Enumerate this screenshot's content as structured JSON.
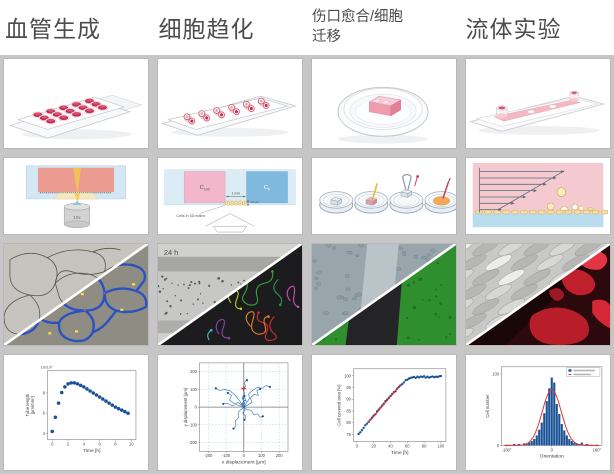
{
  "page": {
    "gutter_color": "#c6c6c6",
    "accent_red": "#c22e52",
    "accent_blue": "#1a5296"
  },
  "headers": [
    {
      "label": "血管生成"
    },
    {
      "label": "细胞趋化"
    },
    {
      "label": "伤口愈合/细胞迁移"
    },
    {
      "label": "流体实验"
    }
  ],
  "labels": {
    "objective": "10x",
    "c_high_base": "C",
    "c_high_sub": "100",
    "c_low_base": "C",
    "c_low_sub": "0",
    "channel_width": "1 mm",
    "channel_height": "70 µm",
    "cells_matrix": "Cells in 3D matrix",
    "time_label": "24 h"
  },
  "chart_data": [
    {
      "type": "scatter",
      "xlabel": "Time [h]",
      "ylabel_lines": [
        "Tube length",
        "[µm/mm²]"
      ],
      "exponent_label": "10x10³",
      "xlim": [
        -0.6,
        10.6
      ],
      "ylim": [
        3.4,
        10.2
      ],
      "xticks": [
        0,
        2,
        4,
        6,
        8,
        10
      ],
      "yticks": [
        4,
        6,
        8
      ],
      "marker_size": 1.8,
      "marker_color": "#1a5296",
      "x": [
        0,
        0.4,
        0.8,
        1.2,
        1.6,
        2,
        2.4,
        2.8,
        3.2,
        3.6,
        4,
        4.4,
        4.8,
        5.2,
        5.6,
        6,
        6.4,
        6.8,
        7.2,
        7.6,
        8,
        8.4,
        8.8,
        9.2,
        9.6
      ],
      "y": [
        4.2,
        5.6,
        7.0,
        8.05,
        8.6,
        8.9,
        9.0,
        9.0,
        8.9,
        8.75,
        8.6,
        8.4,
        8.2,
        8.0,
        7.8,
        7.6,
        7.4,
        7.2,
        7.0,
        6.8,
        6.6,
        6.45,
        6.3,
        6.15,
        6.0
      ]
    },
    {
      "type": "trajectories",
      "xlabel": "x displacement [µm]",
      "ylabel": "y displacement [µm]",
      "xlim": [
        -250,
        250
      ],
      "ylim": [
        -250,
        250
      ],
      "xticks": [
        -200,
        -100,
        0,
        100,
        200
      ],
      "yticks": [
        -200,
        -100,
        0,
        100,
        200
      ],
      "grid": "dashed",
      "line_color": "#2b6cb0",
      "dot_color": "#17497e",
      "center_marker": {
        "x": 0,
        "y": 105,
        "color": "#e03131"
      },
      "trajectories": [
        [
          [
            0,
            0
          ],
          [
            -12,
            18
          ],
          [
            -28,
            42
          ],
          [
            -50,
            68
          ],
          [
            -78,
            92
          ],
          [
            -108,
            99
          ],
          [
            -138,
            94
          ],
          [
            -158,
            106
          ]
        ],
        [
          [
            0,
            0
          ],
          [
            14,
            22
          ],
          [
            32,
            48
          ],
          [
            28,
            76
          ],
          [
            52,
            96
          ],
          [
            78,
            112
          ],
          [
            102,
            106
          ],
          [
            128,
            122
          ],
          [
            148,
            114
          ]
        ],
        [
          [
            0,
            0
          ],
          [
            -14,
            -12
          ],
          [
            -32,
            -30
          ],
          [
            -28,
            -58
          ],
          [
            -48,
            -78
          ],
          [
            -44,
            -104
          ],
          [
            -58,
            -122
          ]
        ],
        [
          [
            0,
            0
          ],
          [
            18,
            -14
          ],
          [
            42,
            -18
          ],
          [
            58,
            -44
          ],
          [
            78,
            -38
          ],
          [
            94,
            -58
          ],
          [
            108,
            -52
          ]
        ],
        [
          [
            0,
            0
          ],
          [
            4,
            28
          ],
          [
            -10,
            52
          ],
          [
            6,
            78
          ],
          [
            -4,
            98
          ],
          [
            10,
            118
          ],
          [
            2,
            138
          ],
          [
            18,
            152
          ]
        ],
        [
          [
            0,
            0
          ],
          [
            22,
            12
          ],
          [
            46,
            26
          ],
          [
            38,
            52
          ],
          [
            58,
            72
          ],
          [
            82,
            66
          ],
          [
            74,
            92
          ],
          [
            92,
            102
          ]
        ],
        [
          [
            0,
            0
          ],
          [
            10,
            6
          ],
          [
            -6,
            14
          ],
          [
            8,
            24
          ],
          [
            -12,
            18
          ],
          [
            2,
            38
          ],
          [
            14,
            34
          ],
          [
            6,
            52
          ],
          [
            -8,
            44
          ],
          [
            4,
            62
          ]
        ],
        [
          [
            0,
            0
          ],
          [
            -18,
            6
          ],
          [
            -42,
            14
          ],
          [
            -68,
            8
          ],
          [
            -92,
            22
          ],
          [
            -116,
            18
          ]
        ],
        [
          [
            0,
            0
          ],
          [
            8,
            -18
          ],
          [
            -6,
            -34
          ],
          [
            12,
            -52
          ],
          [
            4,
            -72
          ]
        ],
        [
          [
            0,
            0
          ],
          [
            -30,
            25
          ],
          [
            -55,
            20
          ],
          [
            -80,
            40
          ],
          [
            -70,
            65
          ],
          [
            -90,
            80
          ]
        ]
      ]
    },
    {
      "type": "scatter",
      "xlabel": "Time [h]",
      "ylabel": "Cell covered area [%]",
      "xlim": [
        -4,
        106
      ],
      "ylim": [
        72,
        103
      ],
      "xticks": [
        0,
        20,
        40,
        60,
        80,
        100
      ],
      "yticks": [
        75,
        80,
        85,
        90,
        95,
        100
      ],
      "marker_size": 1.2,
      "marker_color": "#1a5296",
      "fit_line": {
        "x1": 14,
        "y1": 80.2,
        "x2": 52,
        "y2": 96.3,
        "color": "#d62828"
      },
      "x": [
        2,
        4,
        6,
        8,
        10,
        12,
        14,
        16,
        18,
        20,
        22,
        24,
        26,
        28,
        30,
        32,
        34,
        36,
        38,
        40,
        42,
        44,
        46,
        48,
        50,
        52,
        54,
        56,
        58,
        60,
        62,
        64,
        66,
        68,
        70,
        72,
        74,
        76,
        78,
        80,
        82,
        84,
        86,
        88,
        90,
        92,
        94,
        96,
        98,
        100
      ],
      "y": [
        75.2,
        75.9,
        76.8,
        77.8,
        78.9,
        79.6,
        80.4,
        81.3,
        82.2,
        83.0,
        83.6,
        84.8,
        85.6,
        86.4,
        87.3,
        88.1,
        89.2,
        89.8,
        90.6,
        91.4,
        92.2,
        93.0,
        93.4,
        94.5,
        95.2,
        95.9,
        96.5,
        97.2,
        98.1,
        98.3,
        98.8,
        99.1,
        99.3,
        99.5,
        99.1,
        99.6,
        99.3,
        99.7,
        99.5,
        99.8,
        99.2,
        99.6,
        99.2,
        99.5,
        99.7,
        99.4,
        99.6,
        99.5,
        99.8,
        99.9
      ]
    },
    {
      "type": "histogram",
      "xlabel": "Orientation",
      "ylabel": "Cell number",
      "xlim": [
        -200,
        200
      ],
      "ylim": [
        0,
        110
      ],
      "xticks": [
        -180,
        0,
        180
      ],
      "xtick_labels": [
        "-180°",
        "0",
        "180°"
      ],
      "yticks": [
        0,
        100
      ],
      "bar_color": "#1a5296",
      "bin_centers": [
        -180,
        -170,
        -160,
        -150,
        -140,
        -130,
        -120,
        -110,
        -100,
        -90,
        -80,
        -70,
        -60,
        -50,
        -40,
        -30,
        -20,
        -10,
        0,
        10,
        20,
        30,
        40,
        50,
        60,
        70,
        80,
        90,
        100,
        110,
        120,
        130,
        140,
        150,
        160,
        170,
        180
      ],
      "values": [
        1,
        1,
        0,
        2,
        1,
        2,
        1,
        3,
        2,
        4,
        6,
        9,
        14,
        22,
        32,
        45,
        62,
        80,
        95,
        88,
        58,
        44,
        30,
        21,
        14,
        9,
        6,
        4,
        3,
        2,
        4,
        1,
        2,
        1,
        1,
        0,
        1
      ],
      "fit": {
        "amplitude": 78,
        "sigma": 38,
        "center": 0,
        "color": "#e03131"
      },
      "legend_colors": [
        "#1a5296",
        "#e03131"
      ]
    }
  ]
}
